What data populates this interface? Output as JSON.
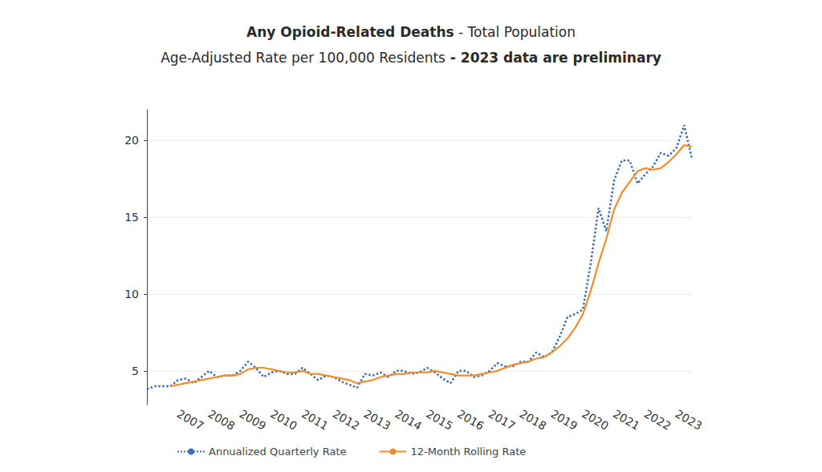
{
  "chart_data": {
    "type": "line",
    "title": "Any Opioid-Related Deaths - Total Population",
    "subtitle": "Age-Adjusted Rate per 100,000 Residents - 2023 data are preliminary",
    "categories": [
      null,
      null,
      null,
      null,
      "2007",
      null,
      null,
      null,
      "2008",
      null,
      null,
      null,
      "2009",
      null,
      null,
      null,
      "2010",
      null,
      null,
      null,
      "2011",
      null,
      null,
      null,
      "2012",
      null,
      null,
      null,
      "2013",
      null,
      null,
      null,
      "2014",
      null,
      null,
      null,
      "2015",
      null,
      null,
      null,
      "2016",
      null,
      null,
      null,
      "2017",
      null,
      null,
      null,
      "2018",
      null,
      null,
      null,
      "2019",
      null,
      null,
      null,
      "2020",
      null,
      null,
      null,
      "2021",
      null,
      null,
      null,
      "2022",
      null,
      null,
      null,
      "2023",
      null,
      null
    ],
    "series": [
      {
        "name": "Annualized Quarterly Rate",
        "color": "#3a6fb5",
        "line_style": "dotted",
        "values": [
          3.8,
          4.0,
          4.0,
          4.0,
          4.4,
          4.5,
          4.2,
          4.6,
          5.0,
          4.6,
          4.7,
          4.7,
          5.0,
          5.6,
          5.2,
          4.6,
          4.9,
          5.0,
          4.8,
          4.8,
          5.2,
          4.8,
          4.4,
          4.7,
          4.6,
          4.3,
          4.1,
          3.9,
          4.8,
          4.7,
          4.9,
          4.6,
          5.0,
          5.0,
          4.8,
          4.9,
          5.2,
          4.9,
          4.5,
          4.2,
          5.0,
          5.0,
          4.6,
          4.7,
          5.0,
          5.5,
          5.3,
          5.3,
          5.6,
          5.6,
          6.2,
          5.9,
          6.2,
          7.2,
          8.5,
          8.7,
          9.0,
          12.0,
          15.6,
          14.1,
          17.4,
          18.7,
          18.7,
          17.2,
          17.8,
          18.3,
          19.2,
          19.0,
          19.5,
          21.0,
          18.8
        ]
      },
      {
        "name": "12-Month Rolling Rate",
        "color": "#f28c28",
        "line_style": "solid",
        "values": [
          null,
          null,
          null,
          4.0,
          4.1,
          4.2,
          4.3,
          4.4,
          4.5,
          4.6,
          4.7,
          4.7,
          4.8,
          5.1,
          5.2,
          5.2,
          5.1,
          5.0,
          4.9,
          4.9,
          5.0,
          4.8,
          4.8,
          4.7,
          4.6,
          4.5,
          4.4,
          4.2,
          4.3,
          4.4,
          4.6,
          4.7,
          4.8,
          4.8,
          4.9,
          4.9,
          4.9,
          5.0,
          4.9,
          4.8,
          4.7,
          4.7,
          4.7,
          4.8,
          4.9,
          5.0,
          5.2,
          5.4,
          5.5,
          5.6,
          5.8,
          5.9,
          6.2,
          6.6,
          7.1,
          7.8,
          8.7,
          10.2,
          12.0,
          13.6,
          15.5,
          16.6,
          17.3,
          18.0,
          18.2,
          18.1,
          18.2,
          18.6,
          19.1,
          19.7,
          19.6
        ]
      }
    ],
    "ylim": [
      2.8,
      22
    ],
    "yticks": [
      5,
      10,
      15,
      20
    ],
    "grid": true,
    "legend": "bottom"
  }
}
